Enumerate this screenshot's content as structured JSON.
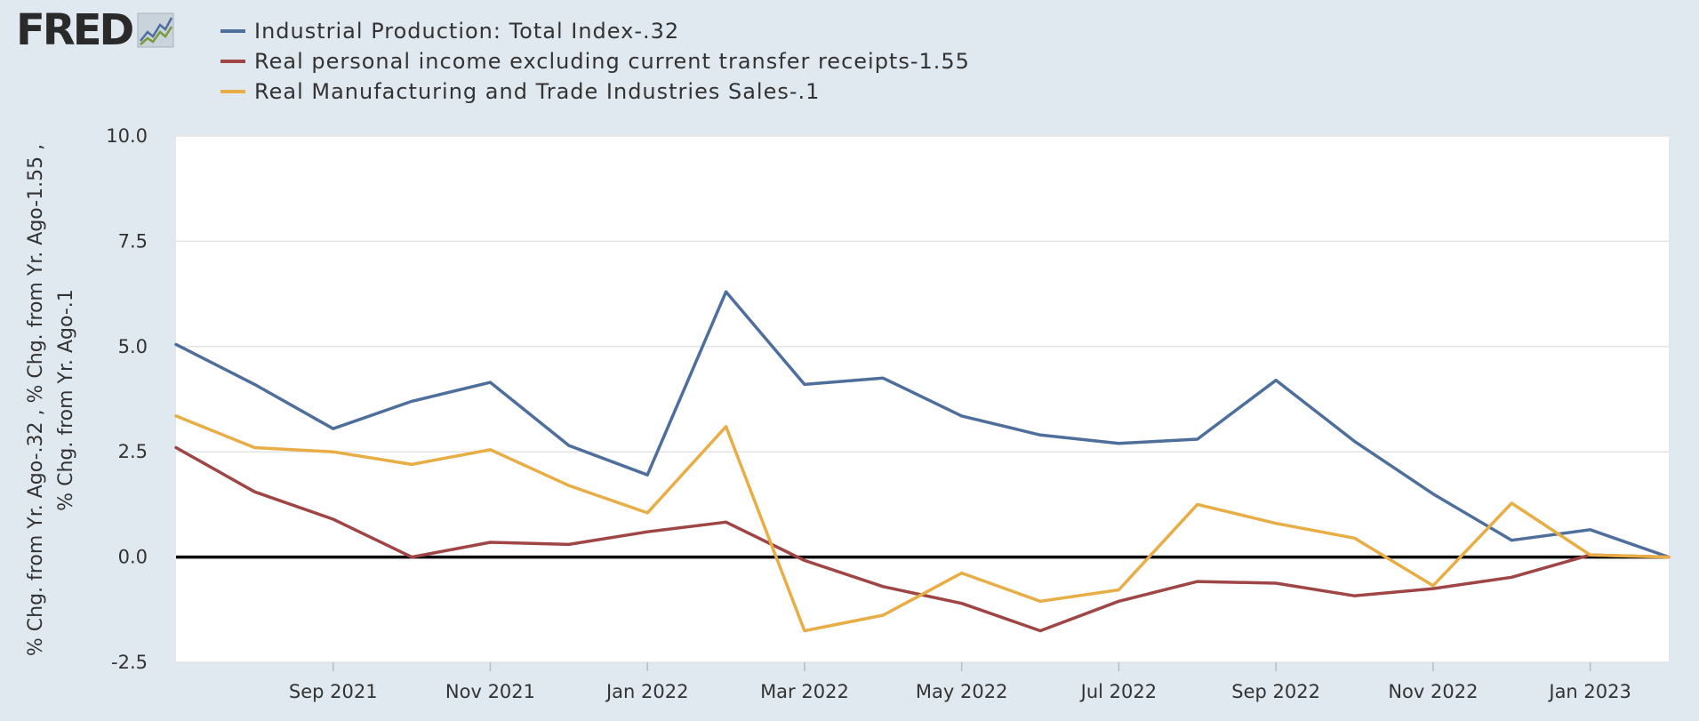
{
  "brand": {
    "name": "FRED"
  },
  "colors": {
    "industrial": "#4e6e9b",
    "income": "#a04545",
    "sales": "#e8ad44",
    "background": "#e1e9f0",
    "plot": "#ffffff"
  },
  "chart_data": {
    "type": "line",
    "title": "",
    "ylabel_lines": [
      "% Chg. from Yr. Ago-.32 , % Chg. from Yr. Ago-1.55 ,",
      "% Chg. from Yr. Ago-.1"
    ],
    "xlabel": "",
    "ylim": [
      -2.5,
      10.0
    ],
    "yticks": [
      -2.5,
      0.0,
      2.5,
      5.0,
      7.5,
      10.0
    ],
    "ytick_labels": [
      "-2.5",
      "0.0",
      "2.5",
      "5.0",
      "7.5",
      "10.0"
    ],
    "x": [
      "2021-07",
      "2021-08",
      "2021-09",
      "2021-10",
      "2021-11",
      "2021-12",
      "2022-01",
      "2022-02",
      "2022-03",
      "2022-04",
      "2022-05",
      "2022-06",
      "2022-07",
      "2022-08",
      "2022-09",
      "2022-10",
      "2022-11",
      "2022-12",
      "2023-01",
      "2023-02"
    ],
    "xticks": [
      "2021-09",
      "2021-11",
      "2022-01",
      "2022-03",
      "2022-05",
      "2022-07",
      "2022-09",
      "2022-11",
      "2023-01"
    ],
    "xtick_labels": [
      "Sep 2021",
      "Nov 2021",
      "Jan 2022",
      "Mar 2022",
      "May 2022",
      "Jul 2022",
      "Sep 2022",
      "Nov 2022",
      "Jan 2023"
    ],
    "legend_position": "top-left",
    "grid": true,
    "series": [
      {
        "name": "Industrial Production: Total Index-.32",
        "color": "#4e6e9b",
        "values": [
          5.05,
          4.1,
          3.05,
          3.7,
          4.15,
          2.65,
          1.95,
          6.3,
          4.1,
          4.25,
          3.35,
          2.9,
          2.7,
          2.8,
          4.2,
          2.75,
          1.5,
          0.4,
          0.65,
          0.0
        ]
      },
      {
        "name": "Real personal income excluding current transfer receipts-1.55",
        "color": "#a04545",
        "values": [
          2.6,
          1.55,
          0.9,
          0.0,
          0.35,
          0.3,
          0.6,
          0.83,
          -0.08,
          -0.7,
          -1.1,
          -1.75,
          -1.05,
          -0.58,
          -0.62,
          -0.92,
          -0.75,
          -0.48,
          0.05,
          0.0
        ]
      },
      {
        "name": "Real Manufacturing and Trade Industries Sales-.1",
        "color": "#e8ad44",
        "values": [
          3.35,
          2.6,
          2.5,
          2.2,
          2.55,
          1.7,
          1.05,
          3.1,
          -1.75,
          -1.38,
          -0.38,
          -1.05,
          -0.78,
          1.25,
          0.8,
          0.45,
          -0.68,
          1.28,
          0.05,
          0.0
        ]
      }
    ]
  }
}
